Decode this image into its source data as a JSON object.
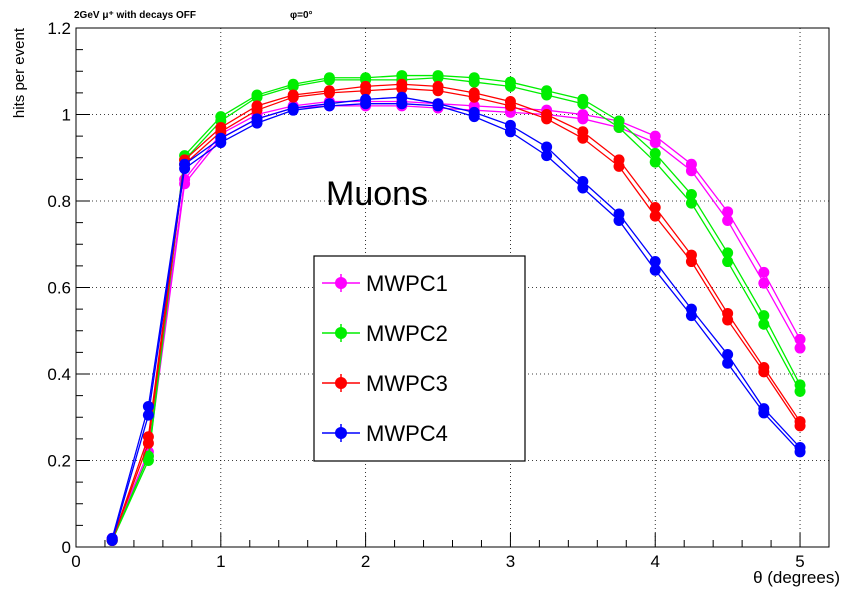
{
  "chart_data": {
    "type": "line",
    "title_left": "2GeV  μ⁺ with decays OFF",
    "title_right": "φ=0°",
    "xlabel": "θ (degrees)",
    "ylabel": "hits per event",
    "xlim": [
      0,
      5.2
    ],
    "ylim": [
      0,
      1.2
    ],
    "xticks": [
      0,
      1,
      2,
      3,
      4,
      5
    ],
    "yticks": [
      0,
      0.2,
      0.4,
      0.6,
      0.8,
      1,
      1.2
    ],
    "ytick_labels": [
      "0",
      "0.2",
      "0.4",
      "0.6",
      "0.8",
      "1",
      "1.2"
    ],
    "grid": true,
    "annotation": "Muons",
    "legend_position": "center",
    "x": [
      0.25,
      0.5,
      0.75,
      1.0,
      1.25,
      1.5,
      1.75,
      2.0,
      2.25,
      2.5,
      2.75,
      3.0,
      3.25,
      3.5,
      3.75,
      4.0,
      4.25,
      4.5,
      4.75,
      5.0
    ],
    "series": [
      {
        "name": "MWPC1",
        "color": "#ff00ff",
        "values_a": [
          0.02,
          0.22,
          0.85,
          0.955,
          1.0,
          1.02,
          1.03,
          1.03,
          1.03,
          1.025,
          1.02,
          1.015,
          1.01,
          1.0,
          0.985,
          0.95,
          0.885,
          0.775,
          0.635,
          0.48
        ],
        "values_b": [
          0.02,
          0.21,
          0.84,
          0.945,
          0.99,
          1.015,
          1.02,
          1.02,
          1.02,
          1.015,
          1.01,
          1.005,
          1.0,
          0.99,
          0.97,
          0.935,
          0.87,
          0.755,
          0.61,
          0.46
        ]
      },
      {
        "name": "MWPC2",
        "color": "#00ee00",
        "values_a": [
          0.015,
          0.21,
          0.905,
          0.995,
          1.045,
          1.07,
          1.085,
          1.085,
          1.09,
          1.09,
          1.085,
          1.075,
          1.055,
          1.035,
          0.985,
          0.91,
          0.815,
          0.68,
          0.535,
          0.375
        ],
        "values_b": [
          0.015,
          0.2,
          0.895,
          0.985,
          1.04,
          1.065,
          1.08,
          1.08,
          1.08,
          1.085,
          1.075,
          1.065,
          1.045,
          1.025,
          0.97,
          0.89,
          0.795,
          0.66,
          0.515,
          0.36
        ]
      },
      {
        "name": "MWPC3",
        "color": "#ff0000",
        "values_a": [
          0.015,
          0.255,
          0.895,
          0.97,
          1.02,
          1.045,
          1.055,
          1.065,
          1.07,
          1.065,
          1.05,
          1.03,
          1.0,
          0.96,
          0.895,
          0.785,
          0.675,
          0.54,
          0.415,
          0.29
        ],
        "values_b": [
          0.015,
          0.24,
          0.885,
          0.96,
          1.01,
          1.04,
          1.05,
          1.055,
          1.06,
          1.055,
          1.04,
          1.02,
          0.99,
          0.945,
          0.88,
          0.765,
          0.66,
          0.525,
          0.405,
          0.28
        ]
      },
      {
        "name": "MWPC4",
        "color": "#0000ff",
        "values_a": [
          0.02,
          0.325,
          0.885,
          0.945,
          0.99,
          1.015,
          1.025,
          1.035,
          1.04,
          1.025,
          1.005,
          0.975,
          0.925,
          0.845,
          0.77,
          0.66,
          0.55,
          0.445,
          0.32,
          0.23
        ],
        "values_b": [
          0.015,
          0.305,
          0.875,
          0.935,
          0.98,
          1.01,
          1.02,
          1.025,
          1.025,
          1.02,
          0.995,
          0.96,
          0.905,
          0.83,
          0.755,
          0.64,
          0.535,
          0.425,
          0.31,
          0.22
        ]
      }
    ]
  }
}
